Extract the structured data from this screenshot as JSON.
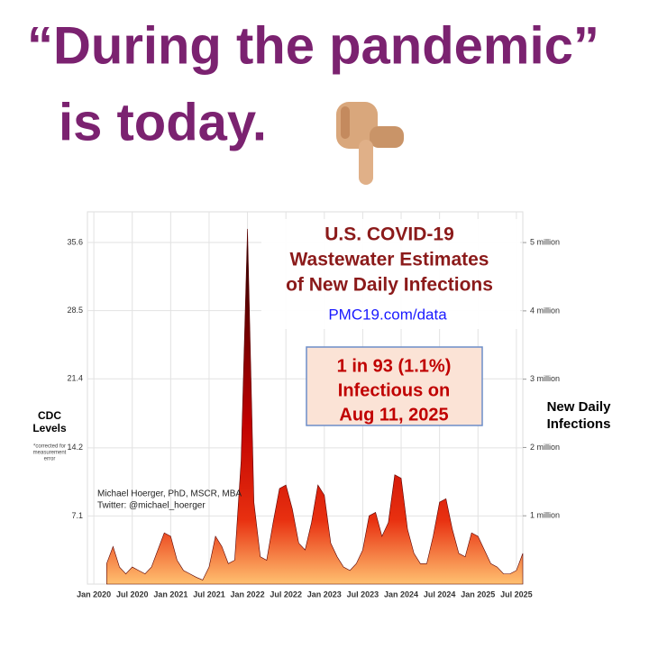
{
  "header": {
    "line1": "“During the pandemic”",
    "line2": "is today."
  },
  "chart_data": {
    "type": "area",
    "title_lines": [
      "U.S. COVID-19",
      "Wastewater Estimates",
      "of New Daily Infections"
    ],
    "source": "PMC19.com/data",
    "callout_lines": [
      "1 in 93 (1.1%)",
      "Infectious on",
      "Aug 11, 2025"
    ],
    "ylabel_lines": [
      "CDC",
      "Levels"
    ],
    "ylabel_note_lines": [
      "*corrected for",
      "measurement",
      "error"
    ],
    "y2label_lines": [
      "New Daily",
      "Infections"
    ],
    "credit_lines": [
      "Michael Hoerger, PhD, MSCR, MBA",
      "Twitter: @michael_hoerger"
    ],
    "x": [
      "2020-03",
      "2020-04",
      "2020-05",
      "2020-06",
      "2020-07",
      "2020-08",
      "2020-09",
      "2020-10",
      "2020-11",
      "2020-12",
      "2021-01",
      "2021-02",
      "2021-03",
      "2021-04",
      "2021-05",
      "2021-06",
      "2021-07",
      "2021-08",
      "2021-09",
      "2021-10",
      "2021-11",
      "2021-12",
      "2022-01",
      "2022-02",
      "2022-03",
      "2022-04",
      "2022-05",
      "2022-06",
      "2022-07",
      "2022-08",
      "2022-09",
      "2022-10",
      "2022-11",
      "2022-12",
      "2023-01",
      "2023-02",
      "2023-03",
      "2023-04",
      "2023-05",
      "2023-06",
      "2023-07",
      "2023-08",
      "2023-09",
      "2023-10",
      "2023-11",
      "2023-12",
      "2024-01",
      "2024-02",
      "2024-03",
      "2024-04",
      "2024-05",
      "2024-06",
      "2024-07",
      "2024-08",
      "2024-09",
      "2024-10",
      "2024-11",
      "2024-12",
      "2025-01",
      "2025-02",
      "2025-03",
      "2025-04",
      "2025-05",
      "2025-06",
      "2025-07",
      "2025-08"
    ],
    "series": [
      {
        "color": "#c00000",
        "axis": "y2",
        "values": [
          300000,
          550000,
          250000,
          150000,
          250000,
          200000,
          150000,
          250000,
          500000,
          750000,
          700000,
          350000,
          200000,
          150000,
          100000,
          60000,
          250000,
          700000,
          550000,
          300000,
          350000,
          1800000,
          5200000,
          1200000,
          400000,
          350000,
          900000,
          1400000,
          1450000,
          1100000,
          600000,
          500000,
          900000,
          1450000,
          1300000,
          600000,
          400000,
          250000,
          200000,
          300000,
          500000,
          1000000,
          1050000,
          700000,
          900000,
          1600000,
          1550000,
          800000,
          450000,
          300000,
          300000,
          700000,
          1200000,
          1250000,
          800000,
          450000,
          400000,
          750000,
          700000,
          500000,
          300000,
          250000,
          150000,
          150000,
          200000,
          450000
        ]
      }
    ],
    "xlim": [
      "2019-12",
      "2025-08"
    ],
    "xticks": [
      {
        "value": "2020-01",
        "label": "Jan 2020"
      },
      {
        "value": "2020-07",
        "label": "Jul 2020"
      },
      {
        "value": "2021-01",
        "label": "Jan 2021"
      },
      {
        "value": "2021-07",
        "label": "Jul 2021"
      },
      {
        "value": "2022-01",
        "label": "Jan 2022"
      },
      {
        "value": "2022-07",
        "label": "Jul 2022"
      },
      {
        "value": "2023-01",
        "label": "Jan 2023"
      },
      {
        "value": "2023-07",
        "label": "Jul 2023"
      },
      {
        "value": "2024-01",
        "label": "Jan 2024"
      },
      {
        "value": "2024-07",
        "label": "Jul 2024"
      },
      {
        "value": "2025-01",
        "label": "Jan 2025"
      },
      {
        "value": "2025-07",
        "label": "Jul 2025"
      }
    ],
    "ylim": [
      0,
      38.8
    ],
    "yticks": [
      7.1,
      14.2,
      21.4,
      28.5,
      35.6
    ],
    "y2lim": [
      0,
      5450000
    ],
    "y2ticks": [
      {
        "value": 1000000,
        "label": "1 million"
      },
      {
        "value": 2000000,
        "label": "2 million"
      },
      {
        "value": 3000000,
        "label": "3 million"
      },
      {
        "value": 4000000,
        "label": "4 million"
      },
      {
        "value": 5000000,
        "label": "5 million"
      }
    ],
    "grid": true
  }
}
